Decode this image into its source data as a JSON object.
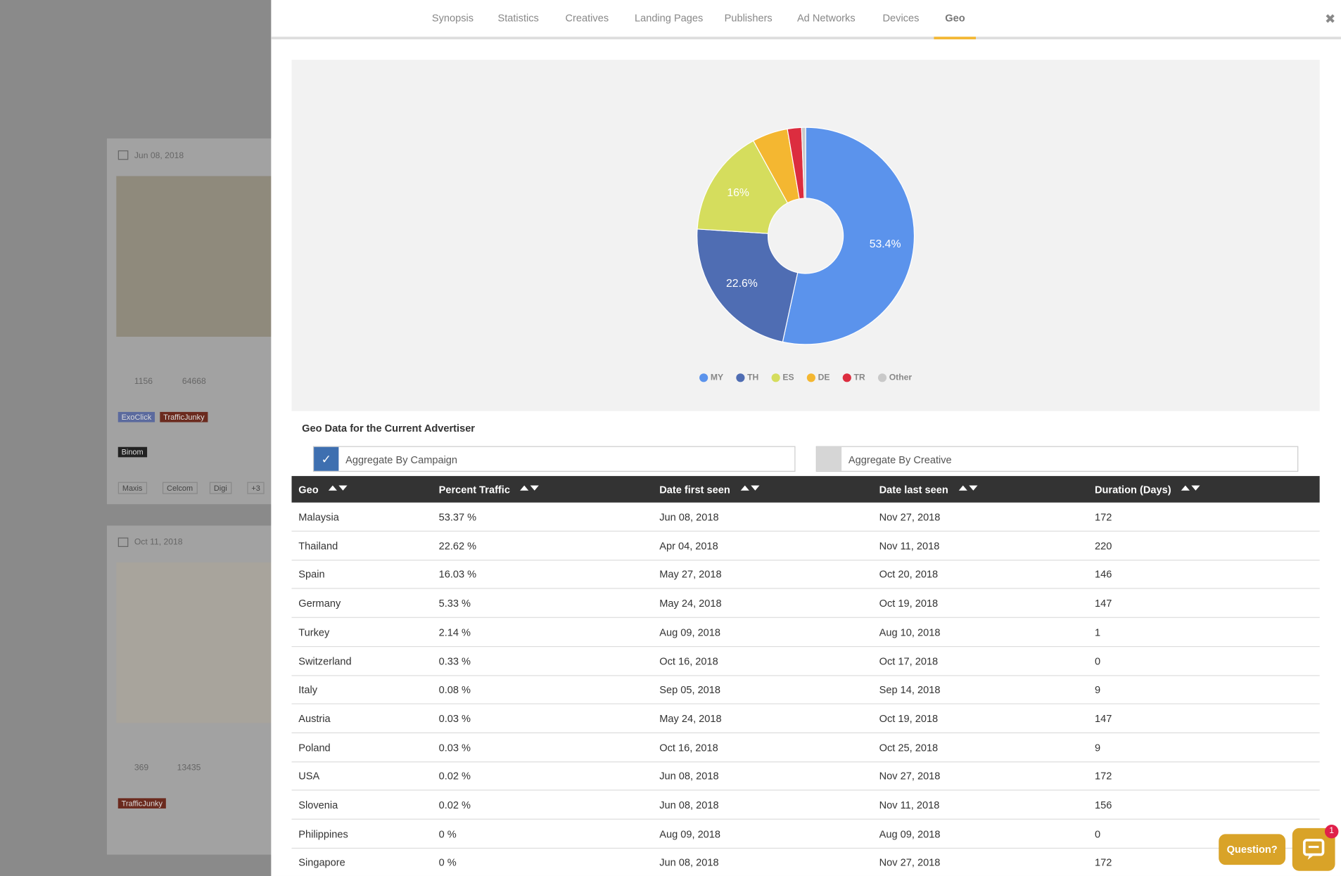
{
  "nav": {
    "tabs": [
      "Synopsis",
      "Statistics",
      "Creatives",
      "Landing Pages",
      "Publishers",
      "Ad Networks",
      "Devices",
      "Geo"
    ],
    "active": 7
  },
  "chart_data": {
    "type": "pie",
    "donut": true,
    "categories": [
      "MY",
      "TH",
      "ES",
      "DE",
      "TR",
      "Other"
    ],
    "values": [
      53.4,
      22.6,
      16,
      5.3,
      2.1,
      0.6
    ],
    "value_labels": [
      "53.4%",
      "22.6%",
      "16%",
      null,
      null,
      null
    ],
    "colors": [
      "#5b93ec",
      "#4f6db3",
      "#d5dd5d",
      "#f4b731",
      "#dc2d3f",
      "#c9c9c9"
    ],
    "legend": "bottom"
  },
  "table": {
    "title": "Geo Data for the Current Advertiser",
    "options": [
      {
        "label": "Aggregate By Campaign",
        "checked": true
      },
      {
        "label": "Aggregate By Creative",
        "checked": false
      }
    ],
    "columns": [
      "Geo",
      "Percent Traffic",
      "Date first seen",
      "Date last seen",
      "Duration (Days)"
    ],
    "rows": [
      [
        "Malaysia",
        "53.37 %",
        "Jun 08, 2018",
        "Nov 27, 2018",
        172
      ],
      [
        "Thailand",
        "22.62 %",
        "Apr 04, 2018",
        "Nov 11, 2018",
        220
      ],
      [
        "Spain",
        "16.03 %",
        "May 27, 2018",
        "Oct 20, 2018",
        146
      ],
      [
        "Germany",
        "5.33 %",
        "May 24, 2018",
        "Oct 19, 2018",
        147
      ],
      [
        "Turkey",
        "2.14 %",
        "Aug 09, 2018",
        "Aug 10, 2018",
        1
      ],
      [
        "Switzerland",
        "0.33 %",
        "Oct 16, 2018",
        "Oct 17, 2018",
        0
      ],
      [
        "Italy",
        "0.08 %",
        "Sep 05, 2018",
        "Sep 14, 2018",
        9
      ],
      [
        "Austria",
        "0.03 %",
        "May 24, 2018",
        "Oct 19, 2018",
        147
      ],
      [
        "Poland",
        "0.03 %",
        "Oct 16, 2018",
        "Oct 25, 2018",
        9
      ],
      [
        "USA",
        "0.02 %",
        "Jun 08, 2018",
        "Nov 27, 2018",
        172
      ],
      [
        "Slovenia",
        "0.02 %",
        "Jun 08, 2018",
        "Nov 11, 2018",
        156
      ],
      [
        "Philippines",
        "0 %",
        "Aug 09, 2018",
        "Aug 09, 2018",
        0
      ],
      [
        "Singapore",
        "0 %",
        "Jun 08, 2018",
        "Nov 27, 2018",
        172
      ]
    ]
  },
  "background": {
    "cards": [
      {
        "date": "Jun 08, 2018",
        "stats": [
          1156,
          64668
        ],
        "networks": [
          "ExoClick",
          "TrafficJunky"
        ],
        "tracker": "Binom",
        "carriers": [
          "Maxis",
          "Celcom",
          "Digi",
          "+3"
        ]
      },
      {
        "date": "Oct 11, 2018",
        "stats": [
          369,
          13435
        ],
        "networks": [
          "TrafficJunky"
        ]
      }
    ]
  },
  "chat": {
    "button": "Question?",
    "badge": "1"
  }
}
